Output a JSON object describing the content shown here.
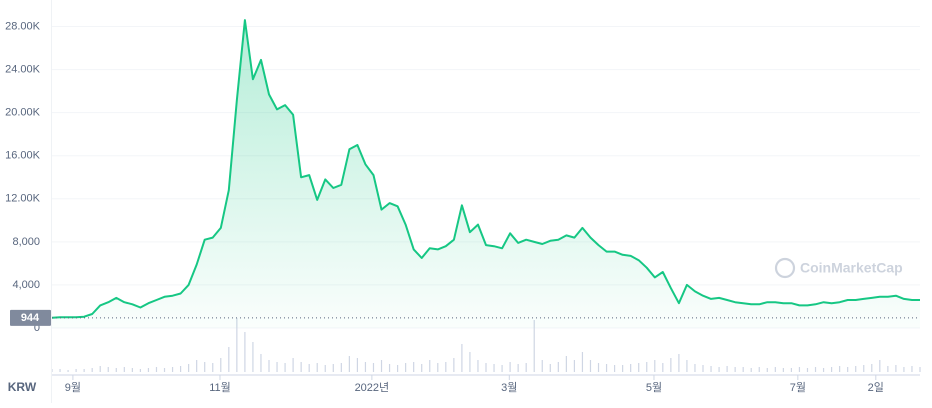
{
  "chart_data": {
    "type": "area",
    "currency": "KRW",
    "watermark": "CoinMarketCap",
    "reference_price": 944,
    "grid": true,
    "xlim": [
      0,
      108
    ],
    "xticks": [
      {
        "value": 2.6,
        "label": "9월"
      },
      {
        "value": 20.9,
        "label": "11월"
      },
      {
        "value": 39.8,
        "label": "2022년"
      },
      {
        "value": 56.9,
        "label": "3월"
      },
      {
        "value": 74.9,
        "label": "5월"
      },
      {
        "value": 92.8,
        "label": "7월"
      },
      {
        "value": 102.5,
        "label": "2일"
      }
    ],
    "ylim": [
      0,
      30000
    ],
    "yticks": [
      0,
      {
        "value": 4000,
        "label": "4,000"
      },
      {
        "value": 8000,
        "label": "8,000"
      },
      {
        "value": 12000,
        "label": "12.00K"
      },
      {
        "value": 16000,
        "label": "16.00K"
      },
      {
        "value": 20000,
        "label": "20.00K"
      },
      {
        "value": 24000,
        "label": "24.00K"
      },
      {
        "value": 28000,
        "label": "28.00K"
      }
    ],
    "series": [
      {
        "color": "#16c784",
        "values": [
          944,
          1000,
          1000,
          1000,
          1050,
          1300,
          2100,
          2400,
          2800,
          2400,
          2200,
          1900,
          2300,
          2600,
          2900,
          3000,
          3200,
          4000,
          5900,
          8200,
          8400,
          9300,
          12800,
          21200,
          28600,
          23100,
          24900,
          21700,
          20300,
          20700,
          19800,
          14000,
          14200,
          11900,
          13800,
          13000,
          13300,
          16600,
          17000,
          15200,
          14200,
          11000,
          11600,
          11300,
          9600,
          7300,
          6500,
          7400,
          7300,
          7600,
          8200,
          11400,
          8900,
          9600,
          7700,
          7600,
          7400,
          8800,
          7900,
          8200,
          8000,
          7800,
          8100,
          8200,
          8600,
          8400,
          9300,
          8400,
          7700,
          7100,
          7100,
          6800,
          6700,
          6300,
          5600,
          4700,
          5200,
          3700,
          2300,
          4000,
          3400,
          3000,
          2700,
          2800,
          2600,
          2400,
          2300,
          2200,
          2200,
          2400,
          2400,
          2300,
          2300,
          2100,
          2100,
          2200,
          2400,
          2300,
          2400,
          2600,
          2600,
          2700,
          2800,
          2900,
          2900,
          3000,
          2700,
          2600,
          2600
        ]
      }
    ],
    "volume": [
      3,
      3,
      2,
      3,
      3,
      4,
      6,
      5,
      4,
      5,
      4,
      3,
      4,
      5,
      4,
      5,
      6,
      8,
      12,
      10,
      9,
      14,
      25,
      54,
      40,
      30,
      18,
      12,
      10,
      9,
      14,
      10,
      8,
      9,
      7,
      8,
      9,
      16,
      14,
      10,
      9,
      12,
      8,
      7,
      9,
      10,
      8,
      12,
      9,
      10,
      14,
      28,
      20,
      12,
      9,
      8,
      7,
      10,
      8,
      9,
      52,
      12,
      8,
      10,
      16,
      12,
      20,
      12,
      9,
      8,
      7,
      7,
      8,
      9,
      10,
      12,
      9,
      14,
      18,
      12,
      8,
      7,
      6,
      5,
      6,
      5,
      5,
      4,
      5,
      4,
      5,
      4,
      4,
      5,
      4,
      5,
      4,
      5,
      6,
      5,
      6,
      7,
      8,
      12,
      6,
      7,
      5,
      6,
      5
    ]
  }
}
